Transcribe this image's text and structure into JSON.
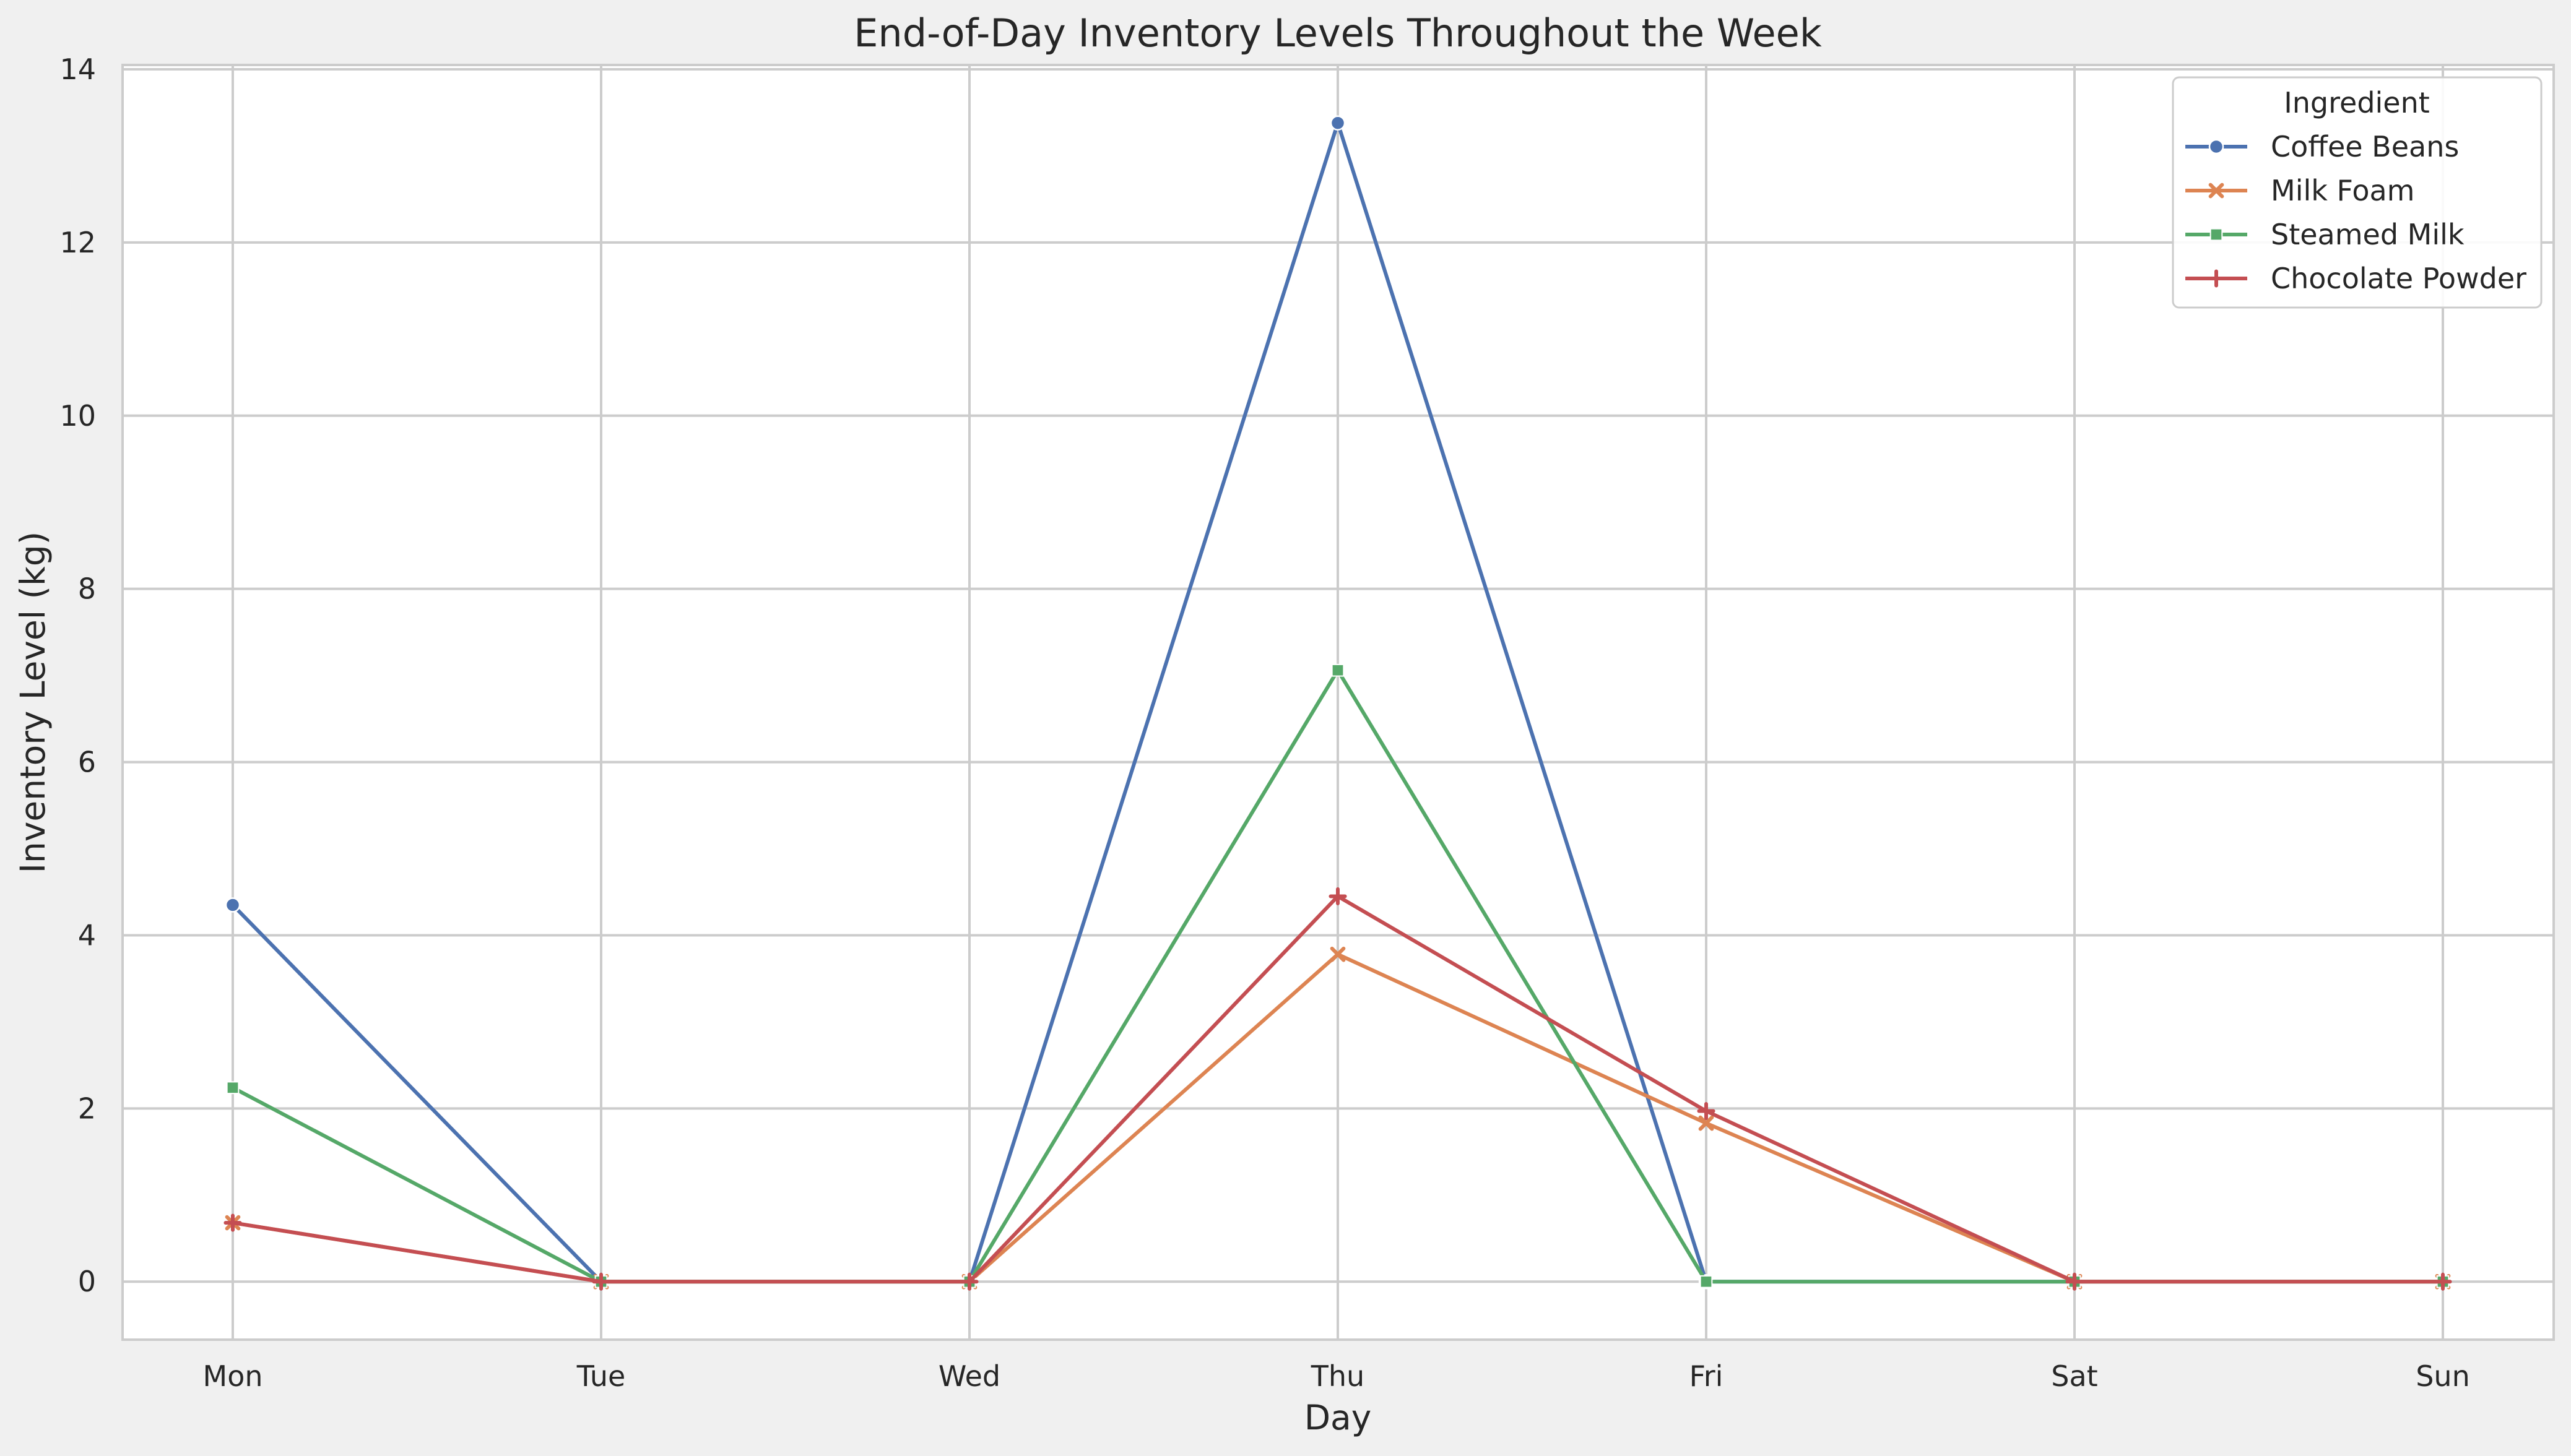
{
  "chart_data": {
    "type": "line",
    "title": "End-of-Day Inventory Levels Throughout the Week",
    "xlabel": "Day",
    "ylabel": "Inventory Level (kg)",
    "categories": [
      "Mon",
      "Tue",
      "Wed",
      "Thu",
      "Fri",
      "Sat",
      "Sun"
    ],
    "ylim": [
      -0.67,
      14.05
    ],
    "yticks": [
      0,
      2,
      4,
      6,
      8,
      10,
      12,
      14
    ],
    "grid": true,
    "legend": {
      "title": "Ingredient",
      "placement": "top-right"
    },
    "series": [
      {
        "name": "Coffee Beans",
        "color": "#4c72b0",
        "marker": "circle",
        "values": [
          4.35,
          0,
          0,
          13.38,
          0,
          0,
          0
        ]
      },
      {
        "name": "Milk Foam",
        "color": "#dd8452",
        "marker": "x",
        "values": [
          0.68,
          0,
          0,
          3.78,
          1.83,
          0,
          0
        ]
      },
      {
        "name": "Steamed Milk",
        "color": "#55a868",
        "marker": "square",
        "values": [
          2.24,
          0,
          0,
          7.06,
          0,
          0,
          0
        ]
      },
      {
        "name": "Chocolate Powder",
        "color": "#c44e52",
        "marker": "plus",
        "values": [
          0.68,
          0,
          0,
          4.45,
          1.97,
          0,
          0
        ]
      }
    ]
  }
}
